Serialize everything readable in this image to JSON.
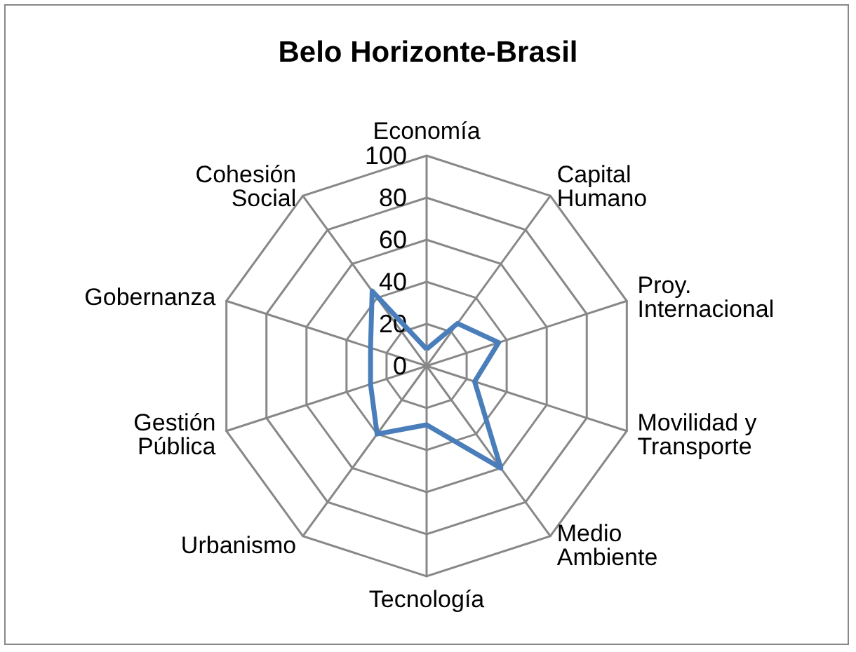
{
  "chart_data": {
    "type": "radar",
    "title": "Belo Horizonte-Brasil",
    "categories": [
      "Economía",
      "Capital Humano",
      "Proy. Internacional",
      "Movilidad y Transporte",
      "Medio Ambiente",
      "Tecnología",
      "Urbanismo",
      "Gestión Pública",
      "Gobernanza",
      "Cohesión Social"
    ],
    "series": [
      {
        "color": "#4a7ebb",
        "values": [
          8,
          25,
          36,
          24,
          60,
          28,
          40,
          28,
          28,
          44
        ]
      }
    ],
    "ylim": [
      0,
      100
    ],
    "yticks": [
      0,
      20,
      40,
      60,
      80,
      100
    ],
    "marker": "none"
  }
}
